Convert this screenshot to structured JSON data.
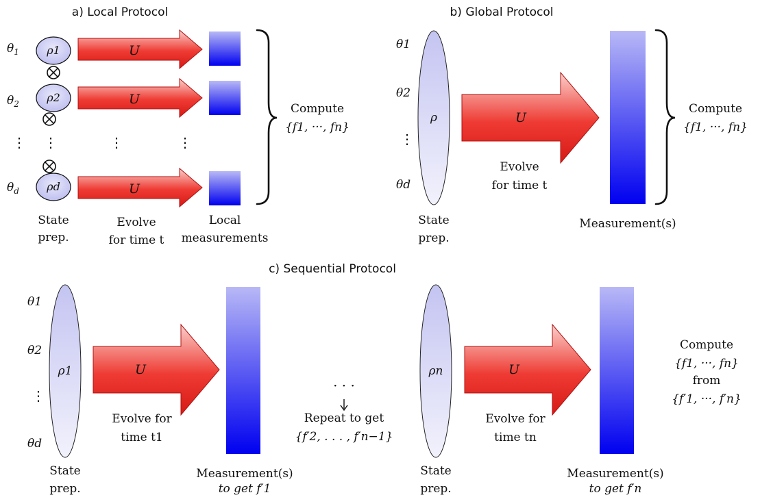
{
  "panels": {
    "local": {
      "title": "a) Local Protocol",
      "params": [
        "θ1",
        "θ2",
        "θd"
      ],
      "params_sub": [
        "1",
        "2",
        "d"
      ],
      "states": [
        "ρ1",
        "ρ2",
        "ρd"
      ],
      "unitary": "U",
      "label_state_line1": "State",
      "label_state_line2": "prep.",
      "label_evolve_line1": "Evolve",
      "label_evolve_line2": "for time t",
      "label_measure_line1": "Local",
      "label_measure_line2": "measurements",
      "compute_line1": "Compute",
      "compute_line2": "{f1, ···, fn}"
    },
    "global": {
      "title": "b) Global Protocol",
      "params": [
        "θ1",
        "θ2",
        "θd"
      ],
      "state": "ρ",
      "unitary": "U",
      "label_evolve_line1": "Evolve",
      "label_evolve_line2": "for time t",
      "label_state_line1": "State",
      "label_state_line2": "prep.",
      "label_measure": "Measurement(s)",
      "compute_line1": "Compute",
      "compute_line2": "{f1, ···, fn}"
    },
    "sequential": {
      "title": "c) Sequential Protocol",
      "params": [
        "θ1",
        "θ2",
        "θd"
      ],
      "state_first": "ρ1",
      "state_last": "ρn",
      "unitary": "U",
      "evolve_first_line1": "Evolve for",
      "evolve_first_line2": "time t1",
      "evolve_last_line1": "Evolve for",
      "evolve_last_line2": "time tn",
      "measure_first_line1": "Measurement(s)",
      "measure_first_line2": "to get f′1",
      "measure_last_line1": "Measurement(s)",
      "measure_last_line2": "to get f′n",
      "label_state_line1": "State",
      "label_state_line2": "prep.",
      "repeat_dots": "· · ·",
      "repeat_line1": "Repeat to get",
      "repeat_line2": "{f′2, . . . , f′n−1}",
      "compute_line1": "Compute",
      "compute_line2": "{f1, ···, fn}",
      "compute_line3": "from",
      "compute_line4": "{f′1, ···, f′n}"
    }
  },
  "colors": {
    "arrow_red": "#e8201c",
    "arrow_light": "#fbd0cc",
    "state_light": "#ececfb",
    "state_mid": "#c4c4f2",
    "measure_light": "#b8b8f6",
    "measure_dark": "#0000f0"
  }
}
